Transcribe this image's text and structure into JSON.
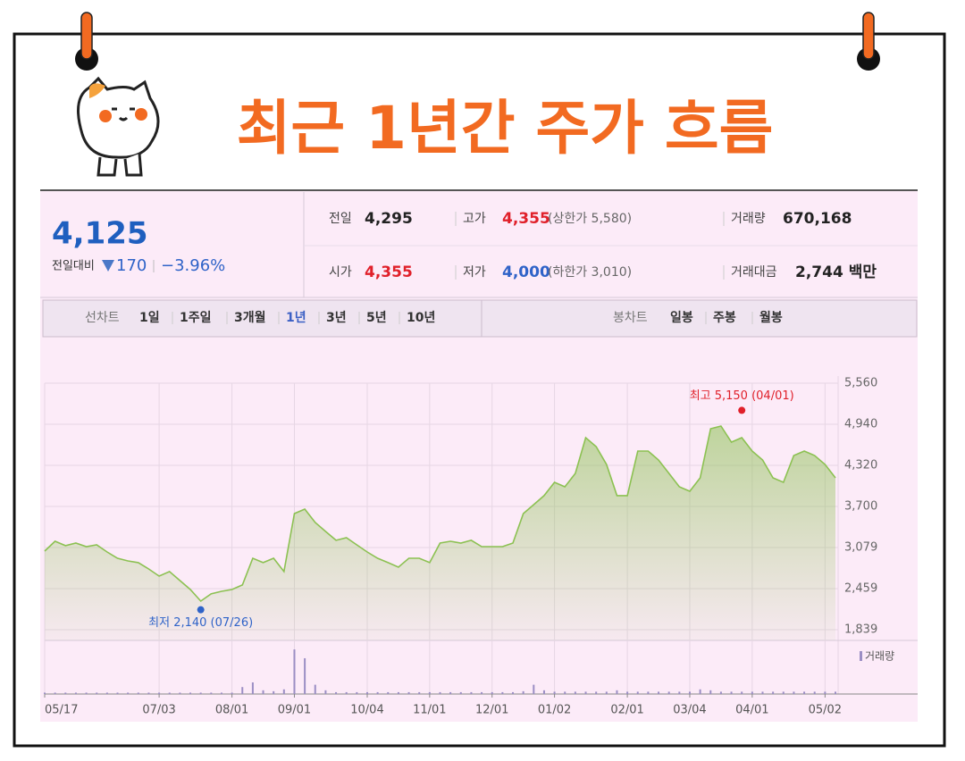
{
  "title": "최근 1년간 주가 흐름",
  "panel": {
    "price": "4,125",
    "change_label": "전일대비",
    "change": "170",
    "change_rate": "−3.96%",
    "rows": [
      [
        {
          "label": "전일",
          "value": "4,295"
        },
        {
          "label": "고가",
          "value": "4,355",
          "limit": "(상한가 5,580)"
        },
        {
          "label": "거래량",
          "value": "670,168"
        }
      ],
      [
        {
          "label": "시가",
          "value": "4,355"
        },
        {
          "label": "저가",
          "value": "4,000",
          "limit": "(하한가 3,010)"
        },
        {
          "label": "거래대금",
          "value": "2,744 백만"
        }
      ]
    ]
  },
  "tabs": {
    "line_label": "선차트",
    "line_items": [
      "1일",
      "1주일",
      "3개월",
      "1년",
      "3년",
      "5년",
      "10년"
    ],
    "selected_index": 3,
    "candle_label": "봉차트",
    "candle_items": [
      "일봉",
      "주봉",
      "월봉"
    ]
  },
  "chart_data": {
    "type": "line",
    "categories": [
      "05/17",
      null,
      null,
      null,
      null,
      null,
      null,
      null,
      null,
      null,
      null,
      "07/03",
      null,
      null,
      null,
      null,
      null,
      null,
      "08/01",
      null,
      null,
      null,
      null,
      null,
      "09/01",
      null,
      null,
      null,
      null,
      null,
      null,
      "10/04",
      null,
      null,
      null,
      null,
      null,
      "11/01",
      null,
      null,
      null,
      null,
      null,
      "12/01",
      null,
      null,
      null,
      null,
      null,
      "01/02",
      null,
      null,
      null,
      null,
      null,
      null,
      "02/01",
      null,
      null,
      null,
      null,
      null,
      "03/04",
      null,
      null,
      null,
      null,
      null,
      "04/01",
      null,
      null,
      null,
      null,
      null,
      null,
      "05/02",
      null
    ],
    "series": [
      {
        "name": "주가",
        "color": "#8cc152",
        "values": [
          3026,
          3174,
          3107,
          3147,
          3093,
          3120,
          3012,
          2918,
          2877,
          2851,
          2756,
          2648,
          2716,
          2581,
          2446,
          2271,
          2379,
          2419,
          2446,
          2514,
          2918,
          2851,
          2918,
          2716,
          3592,
          3659,
          3457,
          3322,
          3188,
          3228,
          3120,
          3012,
          2918,
          2851,
          2783,
          2918,
          2918,
          2851,
          3147,
          3174,
          3147,
          3188,
          3093,
          3093,
          3093,
          3147,
          3592,
          3727,
          3862,
          4064,
          3996,
          4199,
          4738,
          4603,
          4333,
          3862,
          3862,
          4536,
          4536,
          4401,
          4199,
          3996,
          3929,
          4131,
          4873,
          4913,
          4670,
          4738,
          4536,
          4401,
          4131,
          4064,
          4468,
          4536,
          4468,
          4333,
          4131
        ]
      },
      {
        "name": "거래량",
        "color": "#9b8ec4",
        "axis": "y2",
        "values": [
          3,
          3,
          3,
          3,
          3,
          3,
          3,
          3,
          3,
          3,
          3,
          3,
          3,
          3,
          3,
          3,
          3,
          3,
          3,
          15,
          25,
          8,
          6,
          10,
          96,
          77,
          20,
          8,
          4,
          4,
          4,
          4,
          4,
          4,
          4,
          4,
          4,
          4,
          4,
          4,
          4,
          4,
          4,
          4,
          4,
          4,
          6,
          20,
          8,
          5,
          5,
          5,
          5,
          5,
          5,
          8,
          5,
          5,
          5,
          5,
          5,
          5,
          5,
          10,
          8,
          5,
          5,
          5,
          5,
          5,
          5,
          5,
          5,
          5,
          5,
          5,
          5
        ]
      }
    ],
    "ylim": [
      1839,
      5560
    ],
    "yticks": [
      {
        "value": 1839,
        "label": "1,839"
      },
      {
        "value": 2459,
        "label": "2,459"
      },
      {
        "value": 3079,
        "label": "3,079"
      },
      {
        "value": 3700,
        "label": "3,700"
      },
      {
        "value": 4320,
        "label": "4,320"
      },
      {
        "value": 4940,
        "label": "4,940"
      },
      {
        "value": 5560,
        "label": "5,560"
      }
    ],
    "y2lim": [
      0,
      100
    ],
    "grid": true,
    "annotations": [
      {
        "text": "최고 5,150 (04/01)",
        "value": 5150,
        "index": 67,
        "color": "#e0202a"
      },
      {
        "text": "최저 2,140 (07/26)",
        "value": 2140,
        "index": 15,
        "color": "#2f63c8"
      }
    ]
  }
}
